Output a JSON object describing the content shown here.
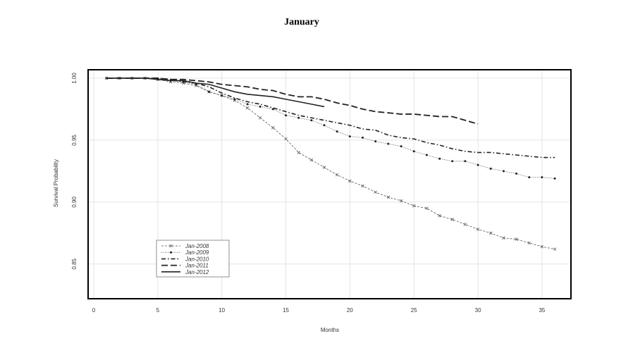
{
  "chart_data": {
    "type": "line",
    "title": "January",
    "xlabel": "Months",
    "ylabel": "Survival Probability",
    "xlim": [
      -0.44,
      37.26
    ],
    "ylim": [
      0.822,
      1.0068
    ],
    "xticks": [
      0,
      5,
      10,
      15,
      20,
      25,
      30,
      35
    ],
    "yticks": [
      0.85,
      0.9,
      0.95,
      1.0
    ],
    "ytick_labels": [
      "0.85",
      "0.90",
      "0.95",
      "1.00"
    ],
    "grid": true,
    "legend_placement": "bottom-left",
    "series": [
      {
        "name": "Jan-2008",
        "style": "dashed-x",
        "x": [
          1,
          2,
          3,
          4,
          5,
          6,
          7,
          8,
          9,
          10,
          11,
          12,
          13,
          14,
          15,
          16,
          17,
          18,
          19,
          20,
          21,
          22,
          23,
          24,
          25,
          26,
          27,
          28,
          29,
          30,
          31,
          32,
          33,
          34,
          35,
          36
        ],
        "y": [
          1,
          1,
          1,
          1,
          0.999,
          0.997,
          0.996,
          0.994,
          0.989,
          0.986,
          0.982,
          0.976,
          0.968,
          0.96,
          0.951,
          0.94,
          0.934,
          0.928,
          0.922,
          0.917,
          0.913,
          0.908,
          0.904,
          0.901,
          0.897,
          0.895,
          0.889,
          0.886,
          0.882,
          0.878,
          0.875,
          0.871,
          0.87,
          0.867,
          0.864,
          0.862
        ]
      },
      {
        "name": "Jan-2009",
        "style": "dotted-dot",
        "x": [
          1,
          2,
          3,
          4,
          5,
          6,
          7,
          8,
          9,
          10,
          11,
          12,
          13,
          14,
          15,
          16,
          17,
          18,
          19,
          20,
          21,
          22,
          23,
          24,
          25,
          26,
          27,
          28,
          29,
          30,
          31,
          32,
          33,
          34,
          35,
          36
        ],
        "y": [
          1,
          1,
          1,
          1,
          0.999,
          0.998,
          0.997,
          0.995,
          0.989,
          0.986,
          0.983,
          0.979,
          0.977,
          0.975,
          0.97,
          0.968,
          0.966,
          0.962,
          0.957,
          0.953,
          0.952,
          0.949,
          0.947,
          0.945,
          0.941,
          0.938,
          0.935,
          0.933,
          0.933,
          0.93,
          0.927,
          0.925,
          0.923,
          0.92,
          0.92,
          0.919
        ]
      },
      {
        "name": "Jan-2010",
        "style": "dotdash",
        "x": [
          1,
          2,
          3,
          4,
          5,
          6,
          7,
          8,
          9,
          10,
          11,
          12,
          13,
          14,
          15,
          16,
          17,
          18,
          19,
          20,
          21,
          22,
          23,
          24,
          25,
          26,
          27,
          28,
          29,
          30,
          31,
          32,
          33,
          34,
          35,
          36
        ],
        "y": [
          1,
          1,
          1,
          1,
          1,
          0.999,
          0.997,
          0.996,
          0.993,
          0.988,
          0.984,
          0.981,
          0.979,
          0.976,
          0.973,
          0.97,
          0.968,
          0.966,
          0.964,
          0.962,
          0.959,
          0.958,
          0.954,
          0.952,
          0.951,
          0.948,
          0.946,
          0.943,
          0.941,
          0.94,
          0.94,
          0.939,
          0.938,
          0.937,
          0.936,
          0.936
        ]
      },
      {
        "name": "Jan-2011",
        "style": "longdash",
        "x": [
          1,
          2,
          3,
          4,
          5,
          6,
          7,
          8,
          9,
          10,
          11,
          12,
          13,
          14,
          15,
          16,
          17,
          18,
          19,
          20,
          21,
          22,
          23,
          24,
          25,
          26,
          27,
          28,
          29,
          30
        ],
        "y": [
          1,
          1,
          1,
          1,
          1,
          0.999,
          0.999,
          0.998,
          0.997,
          0.995,
          0.994,
          0.993,
          0.991,
          0.99,
          0.987,
          0.985,
          0.985,
          0.983,
          0.98,
          0.978,
          0.975,
          0.973,
          0.972,
          0.971,
          0.971,
          0.97,
          0.969,
          0.969,
          0.966,
          0.963
        ]
      },
      {
        "name": "Jan-2012",
        "style": "solid",
        "x": [
          1,
          2,
          3,
          4,
          5,
          6,
          7,
          8,
          9,
          10,
          11,
          12,
          13,
          14,
          15,
          16,
          17,
          18
        ],
        "y": [
          1,
          1,
          1,
          1,
          0.999,
          0.998,
          0.998,
          0.996,
          0.995,
          0.992,
          0.989,
          0.987,
          0.986,
          0.985,
          0.983,
          0.981,
          0.979,
          0.977
        ]
      }
    ]
  }
}
